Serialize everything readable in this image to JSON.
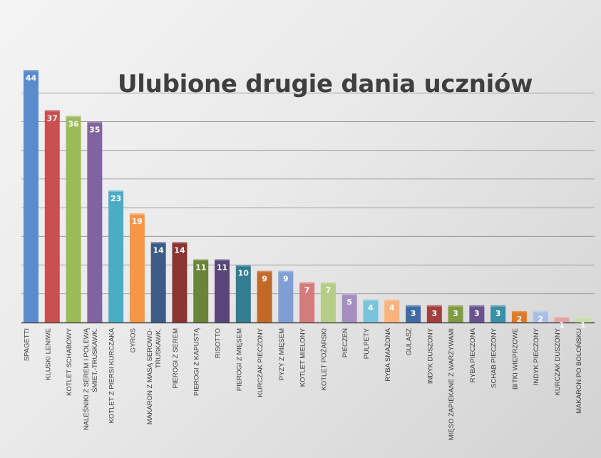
{
  "chart_data": {
    "type": "bar",
    "title": "Ulubione drugie dania uczniów",
    "xlabel": "",
    "ylabel": "",
    "ylim": [
      0,
      45
    ],
    "grid": true,
    "legend": "none",
    "data_labels": true,
    "categories": [
      [
        "SPAGETTI"
      ],
      [
        "KLUSKI LENIWE"
      ],
      [
        "KOTLET SCHABOWY"
      ],
      [
        "NALEŚNIKI Z SEREM I POLEWĄ",
        "ŚMIET.-TRUSKAWK."
      ],
      [
        "KOTLET Z PIERSI KURCZAKA"
      ],
      [
        "GYROS"
      ],
      [
        "MAKARON Z MASĄ SEROWO-",
        "TRUSKAWK."
      ],
      [
        "PIEROGI Z SEREM"
      ],
      [
        "PIEROGI Z KAPUSTĄ"
      ],
      [
        "RISOTTO"
      ],
      [
        "PIEROGI Z MIĘSEM"
      ],
      [
        "KURCZAK PIECZONY"
      ],
      [
        "PYZY Z MIĘSEM"
      ],
      [
        "KOTLET MIELONY"
      ],
      [
        "KOTLET POŻARSKI"
      ],
      [
        "PIECZEŃ"
      ],
      [
        "PULPETY"
      ],
      [
        "RYBA SMAŻONA"
      ],
      [
        "GULASZ"
      ],
      [
        "INDYK DUSZONY"
      ],
      [
        "MIĘSO ZAPIEKANE Z WARZYWAMI"
      ],
      [
        "RYBA PIECZONA"
      ],
      [
        "SCHAB PIECZONY"
      ],
      [
        "BITKI WIEPRZOWE"
      ],
      [
        "INDYK PIECZONY"
      ],
      [
        "KURCZAK DUSZONY"
      ],
      [
        "MAKARON PO BOLOŃSKU"
      ]
    ],
    "values": [
      44,
      37,
      36,
      35,
      23,
      19,
      14,
      14,
      11,
      11,
      10,
      9,
      9,
      7,
      7,
      5,
      4,
      4,
      3,
      3,
      3,
      3,
      3,
      2,
      2,
      1,
      1
    ],
    "colors": [
      "#5b8bcb",
      "#c8504f",
      "#9bbb59",
      "#8064a2",
      "#4bacc6",
      "#f79646",
      "#3a5c85",
      "#8b3432",
      "#6a8438",
      "#5a4578",
      "#327d8f",
      "#c2692a",
      "#7f9fd4",
      "#d47c7b",
      "#b5cd87",
      "#a48fc0",
      "#79c4da",
      "#f9b37b",
      "#3f6aa6",
      "#a33f3d",
      "#7f9c42",
      "#6a5291",
      "#3890a6",
      "#e07925",
      "#a8bfe3",
      "#e2a3a2",
      "#cbdeaa"
    ]
  }
}
